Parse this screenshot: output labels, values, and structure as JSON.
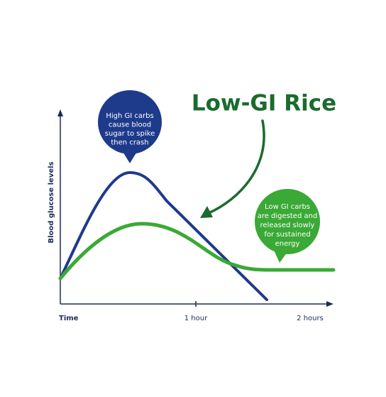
{
  "title": "Low-GI Rice",
  "axes": {
    "y_label": "Blood glucose levels",
    "x_labels": [
      "Time",
      "1 hour",
      "2 hours"
    ]
  },
  "callouts": [
    {
      "lines": [
        "High GI carbs",
        "cause blood",
        "sugar to spike",
        "then crash"
      ]
    },
    {
      "lines": [
        "Low GI carbs",
        "are digested and",
        "released slowly",
        "for sustained",
        "energy"
      ]
    }
  ]
}
